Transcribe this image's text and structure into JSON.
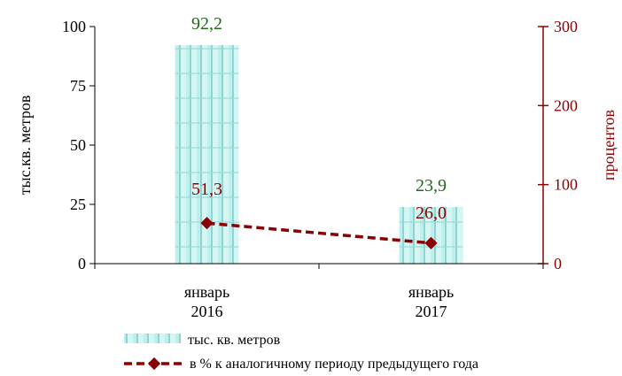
{
  "chart_data": {
    "type": "bar",
    "categories": [
      [
        "январь",
        "2016"
      ],
      [
        "январь",
        "2017"
      ]
    ],
    "series": [
      {
        "name": "тыс. кв. метров",
        "type": "bar",
        "axis": "left",
        "values": [
          92.2,
          23.9
        ],
        "value_labels": [
          "92,2",
          "23,9"
        ],
        "label_color": "#1E6B1E",
        "color": "#A8E4E0"
      },
      {
        "name": "в % к аналогичному  периоду предыдущего года",
        "type": "line",
        "axis": "right",
        "values": [
          51.3,
          26.0
        ],
        "value_labels": [
          "51,3",
          "26,0"
        ],
        "label_color": "#8B0000",
        "color": "#8B0000"
      }
    ],
    "ylabel": "тыс.кв. метров",
    "y2label": "процентов",
    "ylim": [
      0,
      100
    ],
    "y2lim": [
      0,
      300
    ],
    "yticks": [
      0,
      25,
      50,
      75,
      100
    ],
    "y2ticks": [
      0,
      100,
      200,
      300
    ],
    "grid": false,
    "legend_position": "bottom-left"
  }
}
